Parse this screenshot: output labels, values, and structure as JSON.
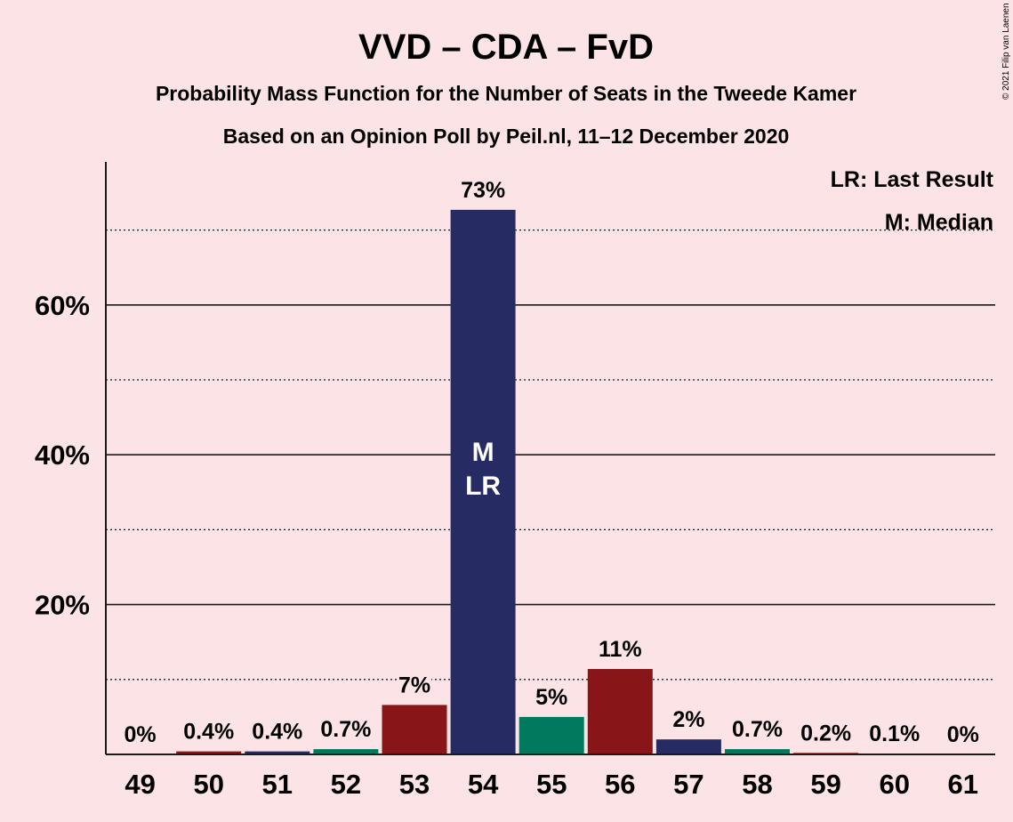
{
  "chart_data": {
    "type": "bar",
    "title": "VVD – CDA – FvD",
    "subtitle_1": "Probability Mass Function for the Number of Seats in the Tweede Kamer",
    "subtitle_2": "Based on an Opinion Poll by Peil.nl, 11–12 December 2020",
    "copyright": "© 2021 Filip van Laenen",
    "categories": [
      "49",
      "50",
      "51",
      "52",
      "53",
      "54",
      "55",
      "56",
      "57",
      "58",
      "59",
      "60",
      "61"
    ],
    "values": [
      0,
      0.4,
      0.4,
      0.7,
      6.6,
      72.7,
      5.0,
      11.4,
      2.0,
      0.7,
      0.2,
      0.1,
      0
    ],
    "value_labels": [
      "0%",
      "0.4%",
      "0.4%",
      "0.7%",
      "7%",
      "73%",
      "5%",
      "11%",
      "2%",
      "0.7%",
      "0.2%",
      "0.1%",
      "0%"
    ],
    "bar_colors": [
      "#262B64",
      "#881618",
      "#262B64",
      "#007A5E",
      "#881618",
      "#262B64",
      "#007A5E",
      "#881618",
      "#262B64",
      "#007A5E",
      "#881618",
      "#262B64",
      "#007A5E"
    ],
    "y_ticks": [
      20,
      40,
      60
    ],
    "y_tick_labels": [
      "20%",
      "40%",
      "60%"
    ],
    "y_minor_gridlines": [
      10,
      30,
      50,
      70
    ],
    "ylim": [
      0,
      79
    ],
    "bar_annotation": {
      "category": "54",
      "lines": [
        "M",
        "LR"
      ]
    },
    "legend": {
      "placement": "top-right",
      "items": [
        "LR: Last Result",
        "M: Median"
      ]
    }
  }
}
